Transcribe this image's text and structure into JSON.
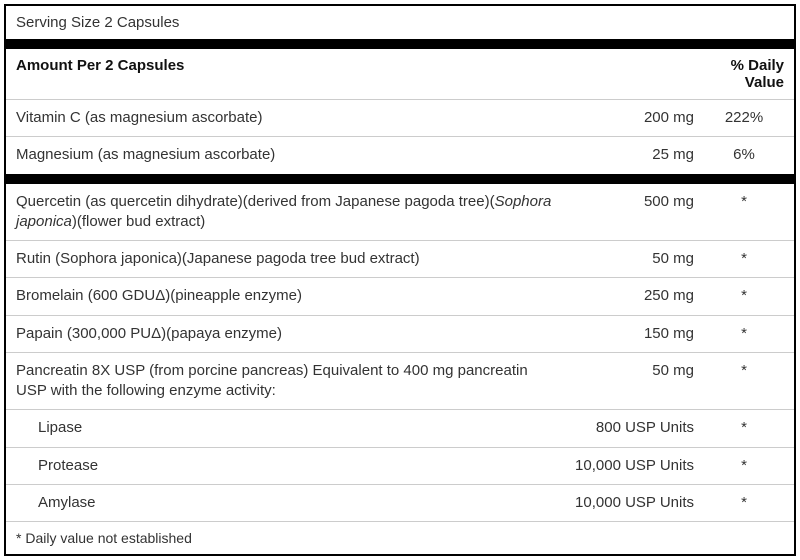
{
  "colors": {
    "border": "#000000",
    "text": "#333333",
    "hairline": "#cccccc",
    "background": "#ffffff"
  },
  "serving_size": "Serving Size 2 Capsules",
  "header": {
    "amount_label": "Amount Per 2 Capsules",
    "dv_label": "% Daily Value"
  },
  "section1": [
    {
      "name": "Vitamin C (as magnesium ascorbate)",
      "amount": "200 mg",
      "dv": "222%"
    },
    {
      "name": "Magnesium (as magnesium ascorbate)",
      "amount": "25 mg",
      "dv": "6%"
    }
  ],
  "section2": [
    {
      "name_pre": "Quercetin (as quercetin dihydrate)(derived from Japanese pagoda tree)(",
      "name_italic": "Sophora japonica",
      "name_post": ")(flower bud extract)",
      "amount": "500 mg",
      "dv": "*",
      "wrap": true
    },
    {
      "name": "Rutin (Sophora japonica)(Japanese pagoda tree bud extract)",
      "amount": "50 mg",
      "dv": "*"
    },
    {
      "name": "Bromelain (600 GDUΔ)(pineapple enzyme)",
      "amount": "250 mg",
      "dv": "*"
    },
    {
      "name": "Papain (300,000 PUΔ)(papaya enzyme)",
      "amount": "150 mg",
      "dv": "*"
    },
    {
      "name": "Pancreatin 8X USP (from porcine pancreas) Equivalent to 400 mg pancreatin USP with the following enzyme activity:",
      "amount": "50 mg",
      "dv": "*",
      "wrap": true
    }
  ],
  "enzymes": [
    {
      "name": "Lipase",
      "amount": "800 USP Units",
      "dv": "*"
    },
    {
      "name": "Protease",
      "amount": "10,000 USP Units",
      "dv": "*"
    },
    {
      "name": "Amylase",
      "amount": "10,000 USP Units",
      "dv": "*"
    }
  ],
  "footer": "* Daily value not established"
}
